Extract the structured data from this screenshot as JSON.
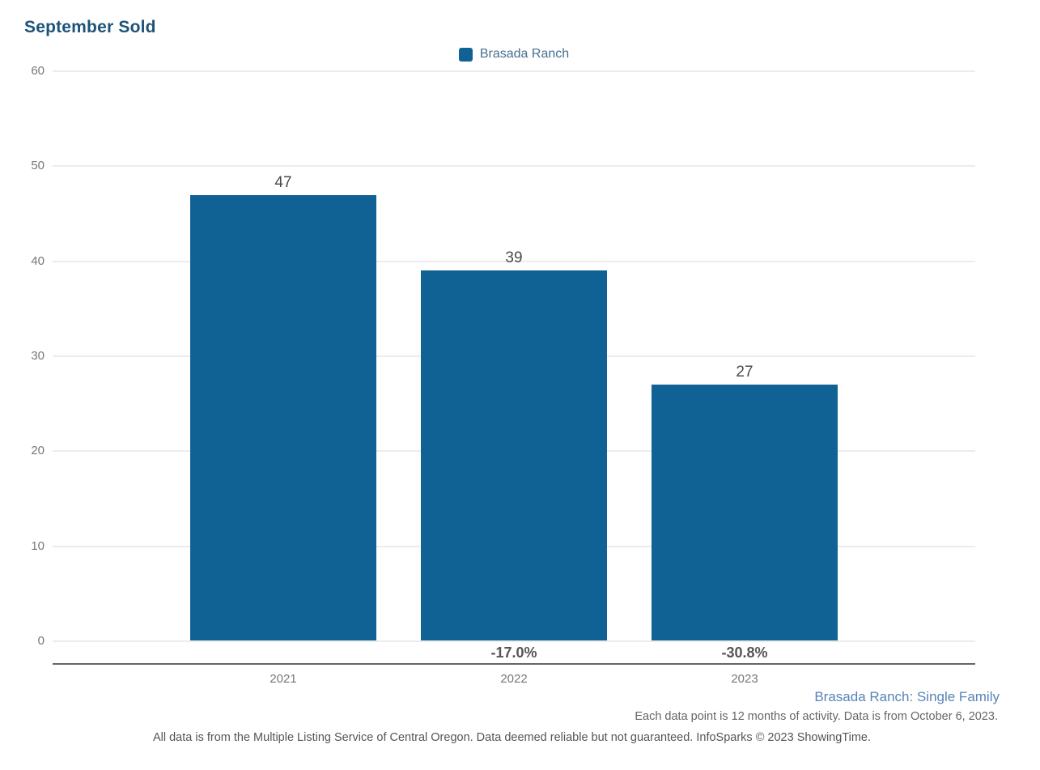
{
  "title": "September Sold",
  "colors": {
    "bar": "#116294",
    "title": "#1d5379",
    "legend_text": "#46708e",
    "subtitle_link": "#5784b7",
    "grid": "#ececec",
    "axis": "#666666",
    "value_label": "#4a4a4a",
    "pct_label": "#555555",
    "tick_label": "#777777"
  },
  "chart_data": {
    "type": "bar",
    "title": "September Sold",
    "categories": [
      "2021",
      "2022",
      "2023"
    ],
    "series": [
      {
        "name": "Brasada Ranch",
        "values": [
          47,
          39,
          27
        ]
      }
    ],
    "bar_value_labels": [
      "47",
      "39",
      "27"
    ],
    "pct_change_labels": [
      null,
      "-17.0%",
      "-30.8%"
    ],
    "xlabel": "",
    "ylabel": "",
    "ylim": [
      0,
      60
    ],
    "yticks": [
      0,
      10,
      20,
      30,
      40,
      50,
      60
    ],
    "grid": true,
    "legend_position": "top-center",
    "bar_color": "#116294"
  },
  "footer": {
    "line1": "Brasada Ranch: Single Family",
    "line2": "Each data point is 12 months of activity. Data is from October 6, 2023.",
    "line3": "All data is from the Multiple Listing Service of Central Oregon. Data deemed reliable but not guaranteed. InfoSparks © 2023 ShowingTime."
  }
}
